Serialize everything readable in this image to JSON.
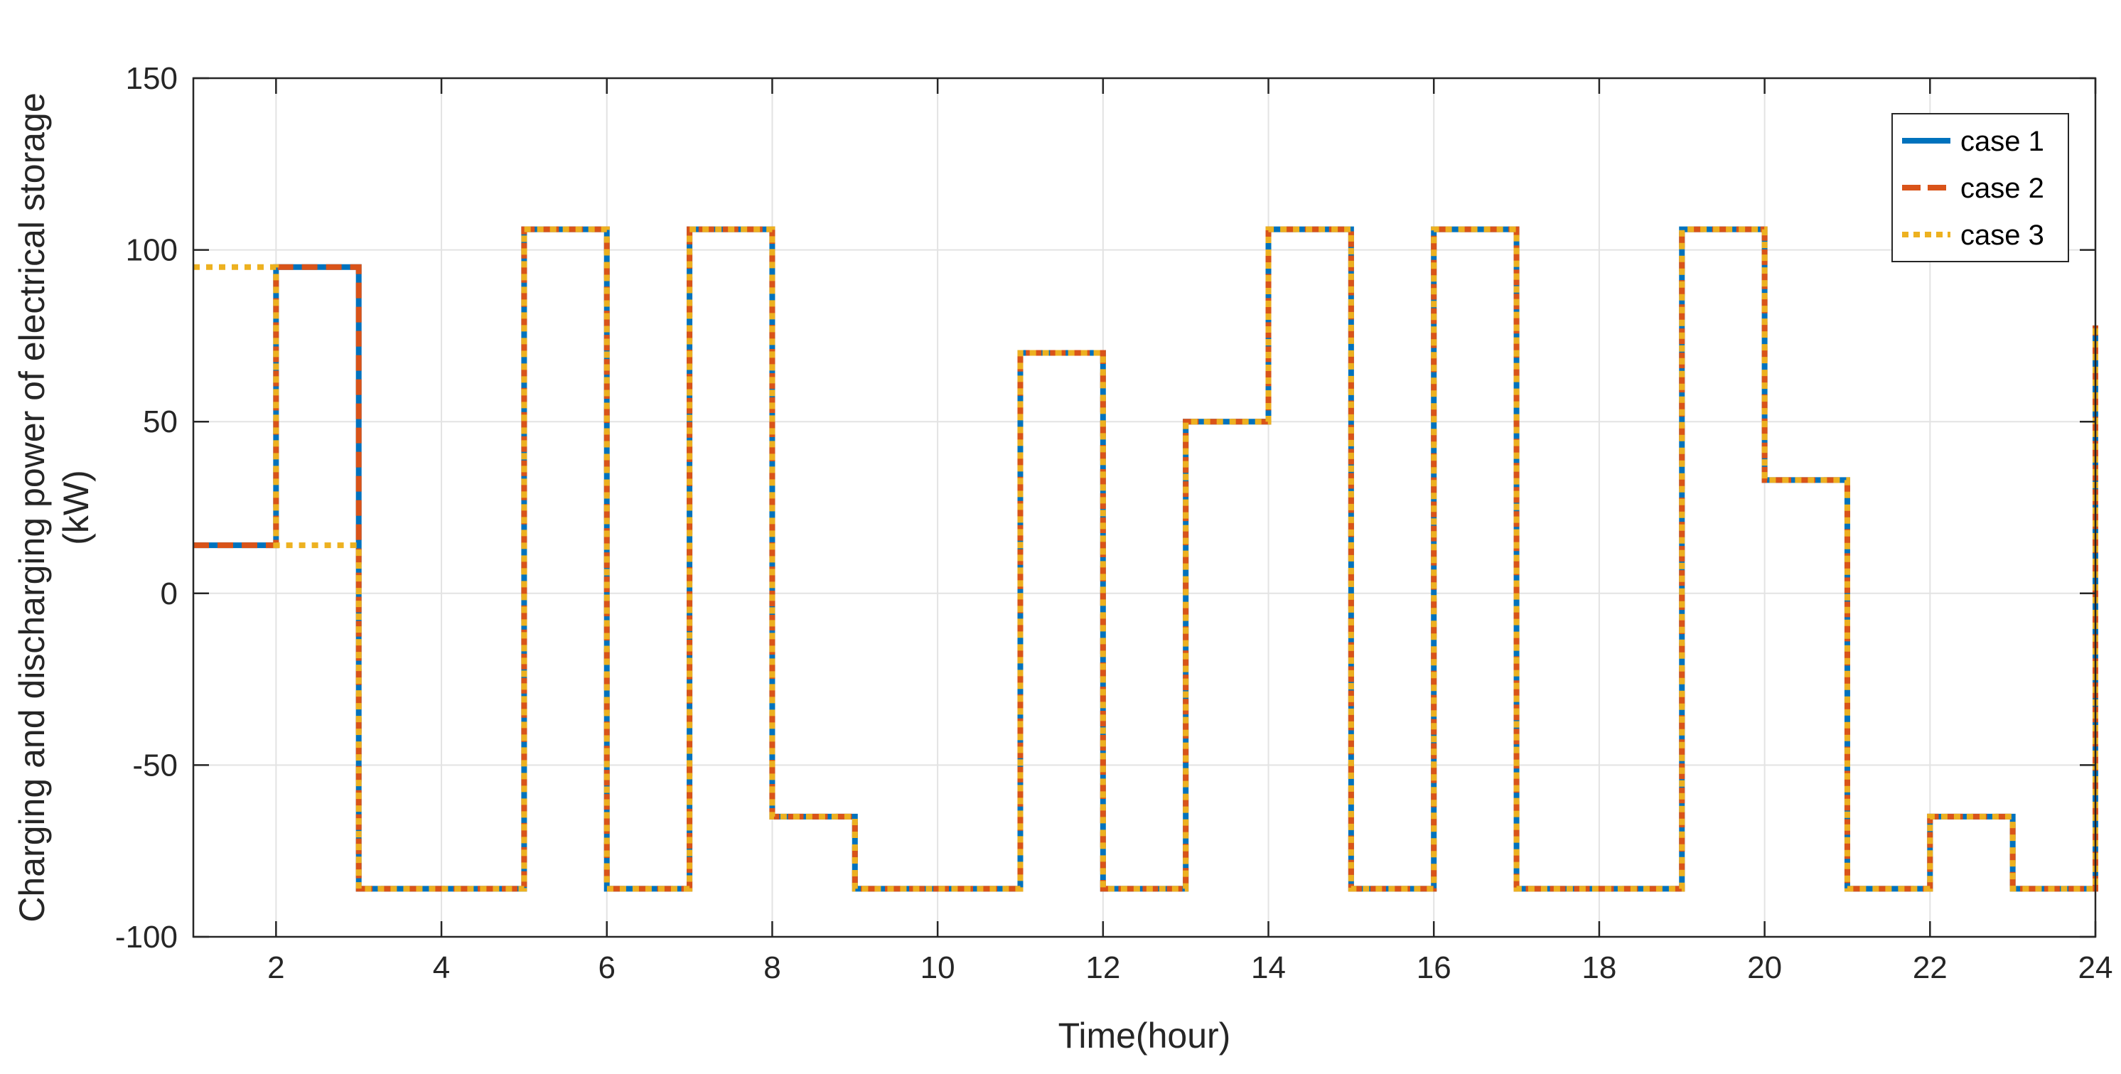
{
  "chart_data": {
    "type": "line",
    "step": "post",
    "xlabel": "Time(hour)",
    "ylabel_lines": [
      "Charging and discharging power of electrical storage",
      "(kW)"
    ],
    "xlim": [
      1,
      24
    ],
    "ylim": [
      -100,
      150
    ],
    "xticks": [
      2,
      4,
      6,
      8,
      10,
      12,
      14,
      16,
      18,
      20,
      22,
      24
    ],
    "yticks": [
      -100,
      -50,
      0,
      50,
      100,
      150
    ],
    "grid": true,
    "legend_position": "top-right",
    "x": [
      1,
      2,
      3,
      4,
      5,
      6,
      7,
      8,
      9,
      10,
      11,
      12,
      13,
      14,
      15,
      16,
      17,
      18,
      19,
      20,
      21,
      22,
      23,
      24
    ],
    "series": [
      {
        "name": "case 1",
        "color": "#0072BD",
        "style": "solid",
        "values": [
          14,
          95,
          -86,
          -86,
          106,
          -86,
          106,
          -65,
          -86,
          -86,
          70,
          -86,
          50,
          106,
          -86,
          106,
          -86,
          -86,
          106,
          33,
          -86,
          -65,
          -86,
          78
        ]
      },
      {
        "name": "case 2",
        "color": "#D95319",
        "style": "dashed",
        "values": [
          14,
          95,
          -86,
          -86,
          106,
          -86,
          106,
          -65,
          -86,
          -86,
          70,
          -86,
          50,
          106,
          -86,
          106,
          -86,
          -86,
          106,
          33,
          -86,
          -65,
          -86,
          78
        ]
      },
      {
        "name": "case 3",
        "color": "#EDB120",
        "style": "dotted",
        "values": [
          95,
          14,
          -86,
          -86,
          106,
          -86,
          106,
          -65,
          -86,
          -86,
          70,
          -86,
          50,
          106,
          -86,
          106,
          -86,
          -86,
          106,
          33,
          -86,
          -65,
          -86,
          78
        ]
      }
    ]
  }
}
